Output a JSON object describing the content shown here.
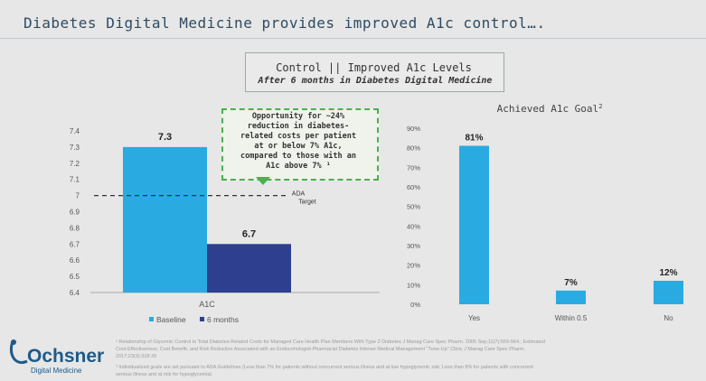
{
  "slide": {
    "title": "Diabetes Digital Medicine provides improved A1c control….",
    "subtitle_line1": "Control || Improved A1c Levels",
    "subtitle_line2": "After 6 months in Diabetes Digital Medicine",
    "callout": "Opportunity for ~24%\nreduction in diabetes-\nrelated costs per patient\nat or below 7% A1c,\ncompared to those with an\nA1c above 7% ¹",
    "footnotes": [
      "¹ Relationship of Glycemic Control to Total Diabetes-Related Costs for Managed Care Health Plan Members With Type 2 Diabetes J Manag Care Spec Pharm. 2005 Sep;11(7):559-564.; Estimated",
      "Cost-Effectiveness, Cost Benefit, and Risk Reduction Associated with an Endocrinologist-Pharmacist Diabetes Intense Medical Management \"Tune-Up\" Clinic J Manag Care Spec Pharm.",
      "2017;23(3):318-26",
      "² Individualized goals are set pursuant to ADA Guidelines (Less than 7% for patients without concurrent serious illness and at low hypoglycemic risk; Less than 8% for patients with concurrent",
      "serious illness and at risk for hypoglycemia)"
    ],
    "logo_name": "Ochsner",
    "logo_sub": "Digital Medicine"
  },
  "chart_data": [
    {
      "type": "bar",
      "title": "",
      "categories": [
        "A1C"
      ],
      "series": [
        {
          "name": "Baseline",
          "values": [
            7.3
          ],
          "color": "#29abe2",
          "label": "7.3"
        },
        {
          "name": "6 months",
          "values": [
            6.7
          ],
          "color": "#2e3f8f",
          "label": "6.7"
        }
      ],
      "ylim": [
        6.4,
        7.4
      ],
      "yticks": [
        "7.4",
        "7.3",
        "7.2",
        "7.1",
        "7",
        "6.9",
        "6.8",
        "6.7",
        "6.6",
        "6.5",
        "6.4"
      ],
      "reference_line": {
        "value": 7,
        "label_line1": "ADA",
        "label_line2": "Target"
      },
      "legend": "bottom",
      "grid": false
    },
    {
      "type": "bar",
      "title": "Achieved A1c Goal",
      "title_sup": "2",
      "categories": [
        "Yes",
        "Within 0.5",
        "No"
      ],
      "values": [
        81,
        7,
        12
      ],
      "labels": [
        "81%",
        "7%",
        "12%"
      ],
      "color": "#29abe2",
      "ylim": [
        0,
        90
      ],
      "yticks": [
        "90%",
        "80%",
        "70%",
        "60%",
        "50%",
        "40%",
        "30%",
        "20%",
        "10%",
        "0%"
      ],
      "grid": false
    }
  ]
}
